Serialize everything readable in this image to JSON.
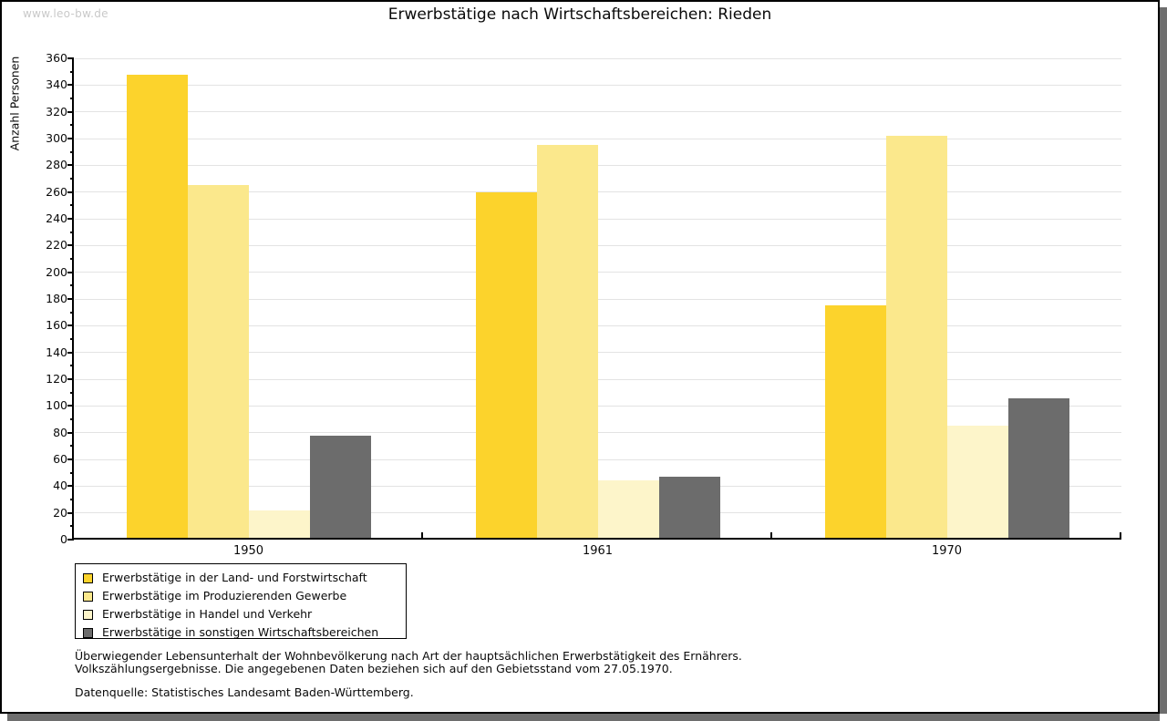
{
  "watermark": "www.leo-bw.de",
  "title": "Erwerbstätige nach Wirtschaftsbereichen: Rieden",
  "footer": {
    "note1": "Überwiegender Lebensunterhalt der Wohnbevölkerung nach Art der hauptsächlichen Erwerbstätigkeit des Ernährers.",
    "note2": "Volkszählungsergebnisse. Die angegebenen Daten beziehen sich auf den Gebietsstand vom 27.05.1970.",
    "source": "Datenquelle: Statistisches Landesamt Baden-Württemberg."
  },
  "colors": {
    "background": "#ffffff",
    "axis": "#000000",
    "gridline": "#e3e3e3",
    "watermark": "#c9c9c9",
    "frame_shadow": "#6e6e6e"
  },
  "chart_data": {
    "type": "bar",
    "title": "Erwerbstätige nach Wirtschaftsbereichen: Rieden",
    "ylabel": "Anzahl Personen",
    "xlabel": "",
    "ylim": [
      0,
      360
    ],
    "y_tick_step": 20,
    "y_minor_tick_step": 10,
    "grid": true,
    "legend_position": "bottom-left",
    "categories": [
      "1950",
      "1961",
      "1970"
    ],
    "series": [
      {
        "name": "Erwerbstätige in der Land- und Forstwirtschaft",
        "color": "#fcd32c",
        "values": [
          348,
          260,
          175
        ]
      },
      {
        "name": "Erwerbstätige im Produzierenden Gewerbe",
        "color": "#fbe88c",
        "values": [
          265,
          295,
          302
        ]
      },
      {
        "name": "Erwerbstätige in Handel und Verkehr",
        "color": "#fdf5ca",
        "values": [
          22,
          44,
          85
        ]
      },
      {
        "name": "Erwerbstätige in sonstigen Wirtschaftsbereichen",
        "color": "#6c6c6c",
        "values": [
          78,
          47,
          106
        ]
      }
    ]
  }
}
